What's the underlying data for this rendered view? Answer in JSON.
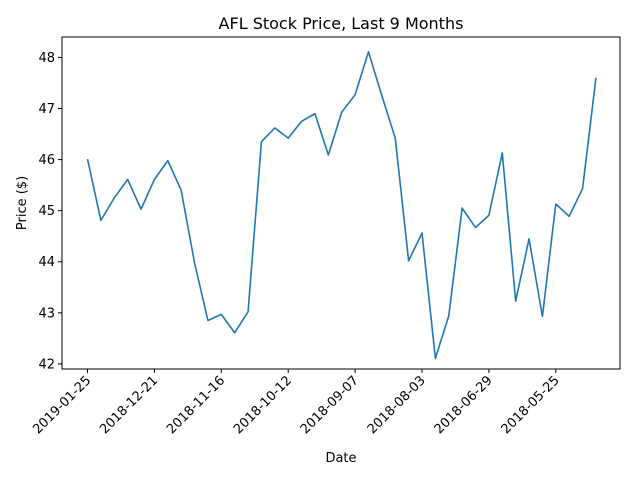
{
  "chart_data": {
    "type": "line",
    "title": "AFL Stock Price, Last 9 Months",
    "xlabel": "Date",
    "ylabel": "Price ($)",
    "xticks": [
      "2019-01-25",
      "2018-12-21",
      "2018-11-16",
      "2018-10-12",
      "2018-09-07",
      "2018-08-03",
      "2018-06-29",
      "2018-05-25"
    ],
    "yticks": [
      42,
      43,
      44,
      45,
      46,
      47,
      48
    ],
    "ylim": [
      41.9,
      48.4
    ],
    "grid": false,
    "legend": "none",
    "colors": {
      "line": "#1f77b4"
    },
    "series": [
      {
        "x": [
          "2019-01-25",
          "2019-01-18",
          "2019-01-11",
          "2019-01-04",
          "2018-12-28",
          "2018-12-21",
          "2018-12-14",
          "2018-12-07",
          "2018-11-30",
          "2018-11-23",
          "2018-11-16",
          "2018-11-09",
          "2018-11-02",
          "2018-10-26",
          "2018-10-19",
          "2018-10-12",
          "2018-10-05",
          "2018-09-28",
          "2018-09-21",
          "2018-09-14",
          "2018-09-07",
          "2018-08-31",
          "2018-08-24",
          "2018-08-17",
          "2018-08-10",
          "2018-08-03",
          "2018-07-27",
          "2018-07-20",
          "2018-07-13",
          "2018-07-06",
          "2018-06-29",
          "2018-06-22",
          "2018-06-15",
          "2018-06-08",
          "2018-06-01",
          "2018-05-25",
          "2018-05-18",
          "2018-05-11",
          "2018-05-04"
        ],
        "values": [
          46.01,
          44.81,
          45.25,
          45.61,
          45.03,
          45.61,
          45.98,
          45.4,
          43.98,
          42.85,
          42.97,
          42.61,
          43.02,
          46.35,
          46.62,
          46.42,
          46.75,
          46.9,
          46.09,
          46.93,
          47.27,
          48.11,
          47.25,
          46.42,
          44.02,
          44.56,
          42.11,
          42.94,
          45.05,
          44.67,
          44.91,
          46.13,
          43.23,
          44.45,
          42.93,
          45.13,
          44.89,
          45.43,
          47.6
        ]
      }
    ]
  }
}
